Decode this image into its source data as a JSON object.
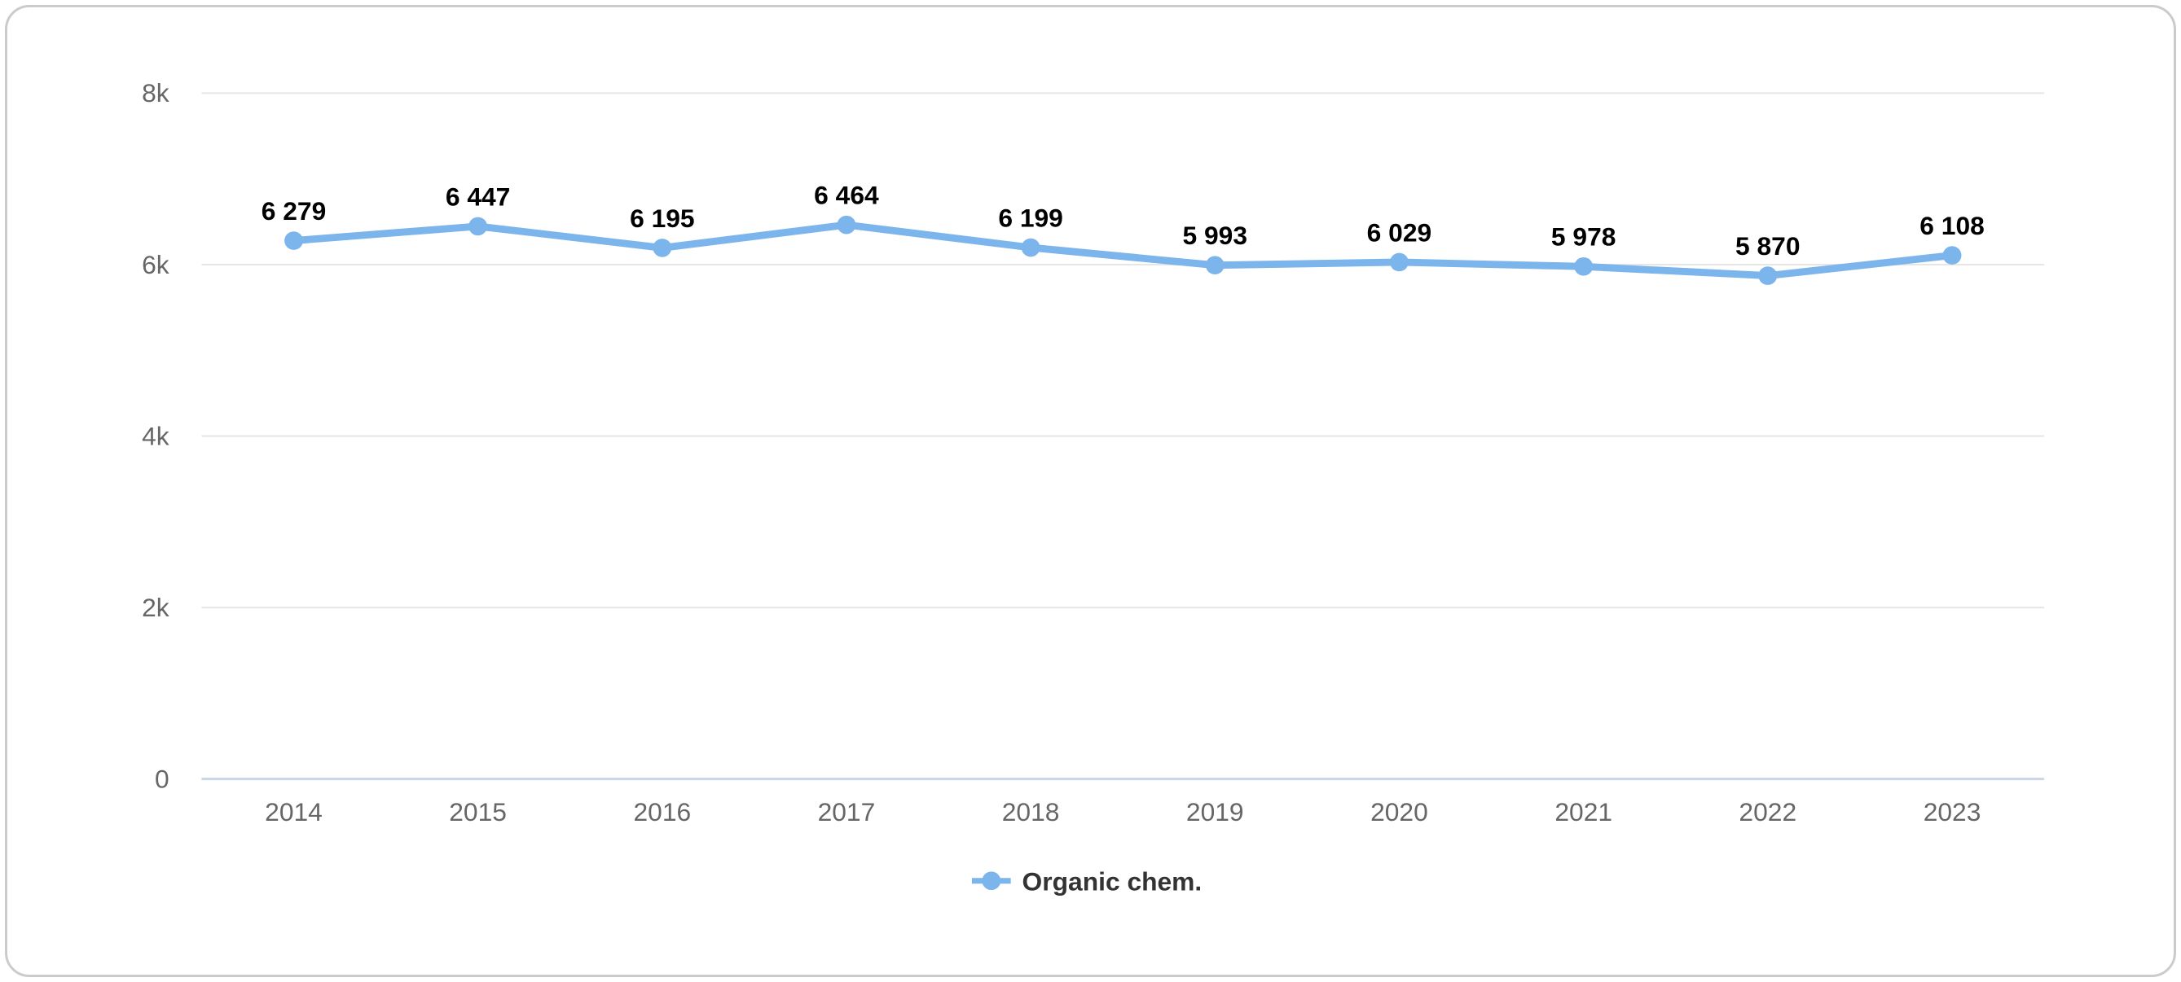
{
  "card": {
    "background": "#ffffff",
    "border_color": "#cbcbcb"
  },
  "chart_data": {
    "type": "line",
    "title": "",
    "xlabel": "",
    "ylabel": "",
    "categories": [
      "2014",
      "2015",
      "2016",
      "2017",
      "2018",
      "2019",
      "2020",
      "2021",
      "2022",
      "2023"
    ],
    "series": [
      {
        "name": "Organic chem.",
        "values": [
          6279,
          6447,
          6195,
          6464,
          6199,
          5993,
          6029,
          5978,
          5870,
          6108
        ],
        "labels": [
          "6 279",
          "6 447",
          "6 195",
          "6 464",
          "6 199",
          "5 993",
          "6 029",
          "5 978",
          "5 870",
          "6 108"
        ],
        "color": "#7cb5ec"
      }
    ],
    "ylim": [
      0,
      8000
    ],
    "yticks": [
      {
        "value": 0,
        "label": "0"
      },
      {
        "value": 2000,
        "label": "2k"
      },
      {
        "value": 4000,
        "label": "4k"
      },
      {
        "value": 6000,
        "label": "6k"
      },
      {
        "value": 8000,
        "label": "8k"
      }
    ],
    "grid": true,
    "legend_position": "bottom-center",
    "colors": {
      "grid": "#e6e6e6",
      "axis_line": "#ccd6eb",
      "tick_label": "#666666",
      "data_label": "#000000",
      "legend_text": "#333333"
    }
  }
}
